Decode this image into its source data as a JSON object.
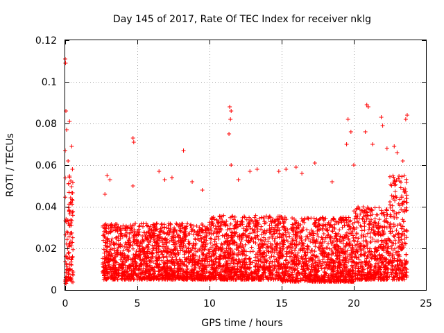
{
  "chart_data": {
    "type": "scatter",
    "title": "Day 145 of 2017, Rate Of TEC Index for receiver nklg",
    "xlabel": "GPS time / hours",
    "ylabel": "ROTI / TECUs",
    "xlim": [
      0,
      25
    ],
    "ylim": [
      0,
      0.12
    ],
    "xticks": [
      0,
      5,
      10,
      15,
      20,
      25
    ],
    "yticks": [
      0,
      0.02,
      0.04,
      0.06,
      0.08,
      0.1,
      0.12
    ],
    "xtick_labels": [
      "0",
      "5",
      "10",
      "15",
      "20",
      "25"
    ],
    "ytick_labels": [
      "0",
      "0.02",
      "0.04",
      "0.06",
      "0.08",
      "0.1",
      "0.12"
    ],
    "grid": true,
    "marker": "+",
    "color": "#ff0000",
    "series": [
      {
        "name": "ROTI",
        "note": "dense cloud of several thousand points; representative envelope per time segment",
        "segments": [
          {
            "x_start": 0.0,
            "x_end": 0.55,
            "y_min": 0.003,
            "y_max": 0.055
          },
          {
            "x_start": 2.6,
            "x_end": 10.0,
            "y_min": 0.005,
            "y_max": 0.032
          },
          {
            "x_start": 10.0,
            "x_end": 15.0,
            "y_min": 0.005,
            "y_max": 0.036
          },
          {
            "x_start": 15.0,
            "x_end": 20.0,
            "y_min": 0.004,
            "y_max": 0.035
          },
          {
            "x_start": 20.0,
            "x_end": 22.5,
            "y_min": 0.005,
            "y_max": 0.04
          },
          {
            "x_start": 22.5,
            "x_end": 23.7,
            "y_min": 0.005,
            "y_max": 0.055
          }
        ],
        "peaks": [
          {
            "x": 0.0,
            "y": 0.111
          },
          {
            "x": 0.02,
            "y": 0.109
          },
          {
            "x": 0.05,
            "y": 0.086
          },
          {
            "x": 0.1,
            "y": 0.077
          },
          {
            "x": 0.3,
            "y": 0.081
          },
          {
            "x": 0.45,
            "y": 0.069
          },
          {
            "x": 0.0,
            "y": 0.067
          },
          {
            "x": 0.2,
            "y": 0.062
          },
          {
            "x": 0.5,
            "y": 0.058
          },
          {
            "x": 2.9,
            "y": 0.055
          },
          {
            "x": 3.1,
            "y": 0.053
          },
          {
            "x": 2.75,
            "y": 0.046
          },
          {
            "x": 4.7,
            "y": 0.073
          },
          {
            "x": 4.75,
            "y": 0.071
          },
          {
            "x": 4.7,
            "y": 0.05
          },
          {
            "x": 6.5,
            "y": 0.057
          },
          {
            "x": 6.9,
            "y": 0.053
          },
          {
            "x": 7.4,
            "y": 0.054
          },
          {
            "x": 8.2,
            "y": 0.067
          },
          {
            "x": 8.8,
            "y": 0.052
          },
          {
            "x": 9.5,
            "y": 0.048
          },
          {
            "x": 11.4,
            "y": 0.088
          },
          {
            "x": 11.5,
            "y": 0.086
          },
          {
            "x": 11.45,
            "y": 0.082
          },
          {
            "x": 11.35,
            "y": 0.075
          },
          {
            "x": 11.5,
            "y": 0.06
          },
          {
            "x": 12.0,
            "y": 0.053
          },
          {
            "x": 12.8,
            "y": 0.057
          },
          {
            "x": 13.3,
            "y": 0.058
          },
          {
            "x": 14.8,
            "y": 0.057
          },
          {
            "x": 15.3,
            "y": 0.058
          },
          {
            "x": 16.0,
            "y": 0.059
          },
          {
            "x": 16.4,
            "y": 0.056
          },
          {
            "x": 17.3,
            "y": 0.061
          },
          {
            "x": 18.5,
            "y": 0.052
          },
          {
            "x": 19.5,
            "y": 0.07
          },
          {
            "x": 19.6,
            "y": 0.082
          },
          {
            "x": 19.8,
            "y": 0.076
          },
          {
            "x": 20.0,
            "y": 0.06
          },
          {
            "x": 20.9,
            "y": 0.089
          },
          {
            "x": 21.0,
            "y": 0.088
          },
          {
            "x": 20.8,
            "y": 0.076
          },
          {
            "x": 21.3,
            "y": 0.07
          },
          {
            "x": 21.9,
            "y": 0.083
          },
          {
            "x": 22.0,
            "y": 0.079
          },
          {
            "x": 22.3,
            "y": 0.068
          },
          {
            "x": 22.8,
            "y": 0.069
          },
          {
            "x": 23.0,
            "y": 0.066
          },
          {
            "x": 23.7,
            "y": 0.084
          },
          {
            "x": 23.6,
            "y": 0.082
          },
          {
            "x": 23.4,
            "y": 0.062
          }
        ]
      }
    ]
  }
}
